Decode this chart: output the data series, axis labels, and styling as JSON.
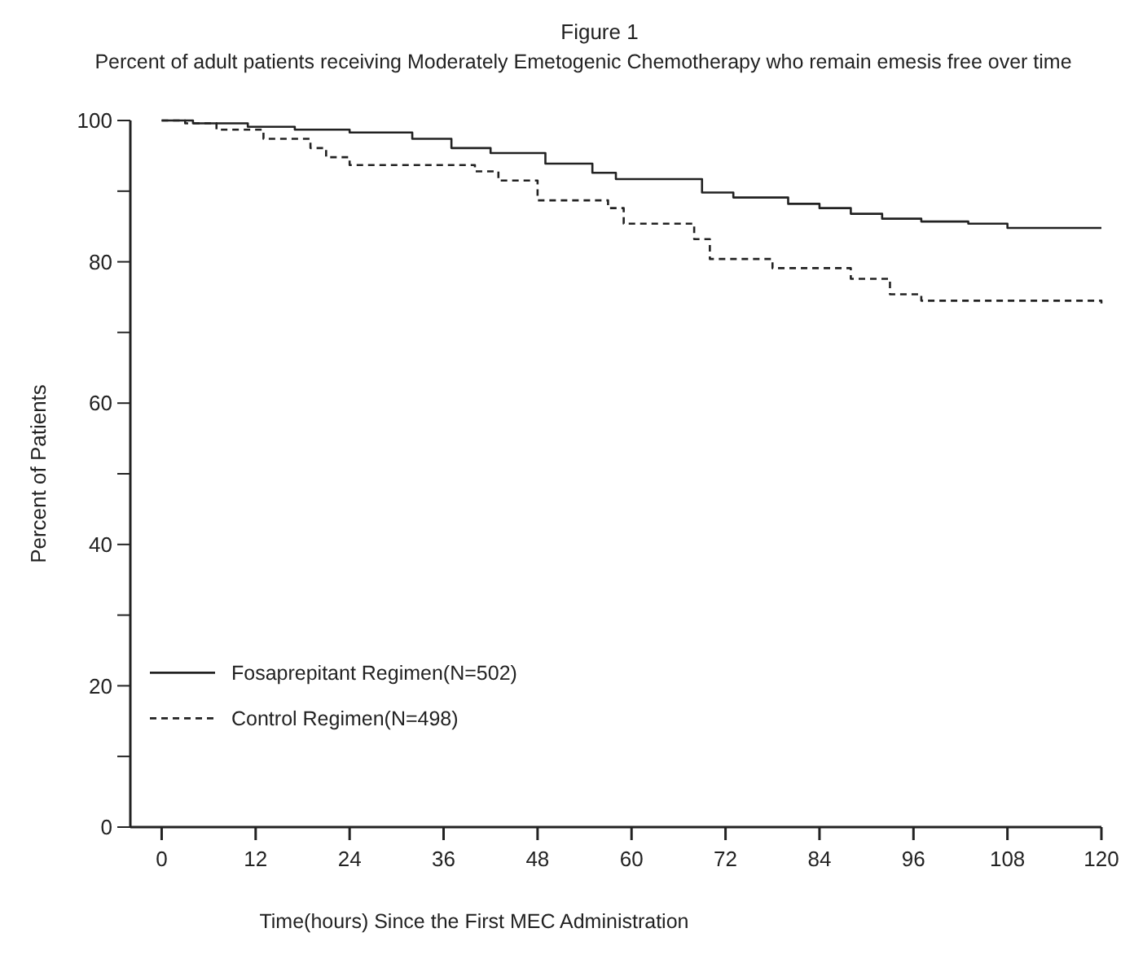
{
  "chart_data": {
    "type": "step",
    "title": "Figure 1",
    "subtitle": "Percent of adult patients receiving Moderately Emetogenic Chemotherapy who remain emesis free over time",
    "xlabel": "Time(hours) Since the First MEC Administration",
    "ylabel": "Percent of  Patients",
    "xlim": [
      -4,
      120
    ],
    "xticks": [
      0,
      12,
      24,
      36,
      48,
      60,
      72,
      84,
      96,
      108,
      120
    ],
    "ylim": [
      0,
      100
    ],
    "yticks": [
      0,
      {
        "value": 10,
        "label": null
      },
      20,
      {
        "value": 30,
        "label": null
      },
      40,
      {
        "value": 50,
        "label": null
      },
      60,
      {
        "value": 70,
        "label": null
      },
      80,
      {
        "value": 90,
        "label": null
      },
      100
    ],
    "grid": false,
    "legend": "bottom left",
    "marker": "none",
    "series": [
      {
        "name": "Fosaprepitant Regimen(N=502)",
        "color": "#222222",
        "line_style": "solid",
        "x": [
          0,
          4,
          11,
          17,
          24,
          32,
          37,
          42,
          49,
          55,
          58,
          66,
          69,
          73,
          80,
          84,
          88,
          92,
          97,
          103,
          108,
          120
        ],
        "values": [
          100,
          99.6,
          99.1,
          98.7,
          98.3,
          97.4,
          96.1,
          95.4,
          93.9,
          92.6,
          91.7,
          91.7,
          89.8,
          89.1,
          88.2,
          87.6,
          86.8,
          86.1,
          85.7,
          85.4,
          84.8,
          84.8
        ]
      },
      {
        "name": "Control Regimen(N=498)",
        "color": "#222222",
        "line_style": "dashed",
        "x": [
          0,
          3,
          7,
          13,
          19,
          21,
          24,
          40,
          43,
          48,
          57,
          59,
          64,
          68,
          70,
          78,
          88,
          93,
          97,
          120
        ],
        "values": [
          100,
          99.6,
          98.7,
          97.4,
          96.1,
          94.8,
          93.7,
          92.8,
          91.5,
          88.7,
          87.6,
          85.4,
          85.4,
          83.2,
          80.4,
          79.1,
          77.6,
          75.4,
          74.5,
          74.1
        ]
      }
    ]
  }
}
